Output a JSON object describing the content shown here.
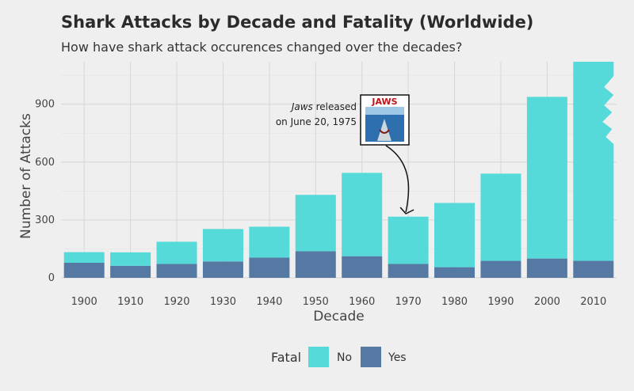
{
  "header": {
    "title": "Shark Attacks by Decade and Fatality (Worldwide)",
    "subtitle": "How have shark attack occurences changed over the decades?"
  },
  "chart_data": {
    "type": "bar",
    "stacked": true,
    "categories": [
      "1900",
      "1910",
      "1920",
      "1930",
      "1940",
      "1950",
      "1960",
      "1970",
      "1980",
      "1990",
      "2000",
      "2010"
    ],
    "series": [
      {
        "name": "Yes",
        "color": "#5679a4",
        "values": [
          78,
          62,
          72,
          85,
          105,
          138,
          112,
          72,
          55,
          88,
          100,
          88
        ]
      },
      {
        "name": "No",
        "color": "#55d9d9",
        "values": [
          55,
          70,
          115,
          168,
          160,
          292,
          432,
          245,
          333,
          452,
          838,
          1032
        ]
      }
    ],
    "xlabel": "Decade",
    "ylabel": "Number of Attacks",
    "ylim": [
      0,
      1120
    ],
    "yticks": [
      0,
      300,
      600,
      900
    ],
    "grid": true,
    "last_bar_note": "2010 bar top edge drawn as a jagged shark-bite shape",
    "legend": {
      "title": "Fatal",
      "placement": "bottom",
      "items": [
        {
          "label": "No",
          "color": "#55d9d9"
        },
        {
          "label": "Yes",
          "color": "#5679a4"
        }
      ]
    },
    "annotation": {
      "text_italic": "Jaws",
      "text_line1_rest": " released",
      "text_line2": "on June 20, 1975",
      "poster_title": "JAWS",
      "poster_icon": "jaws-poster-icon",
      "arrow_target_category": "1970"
    }
  }
}
